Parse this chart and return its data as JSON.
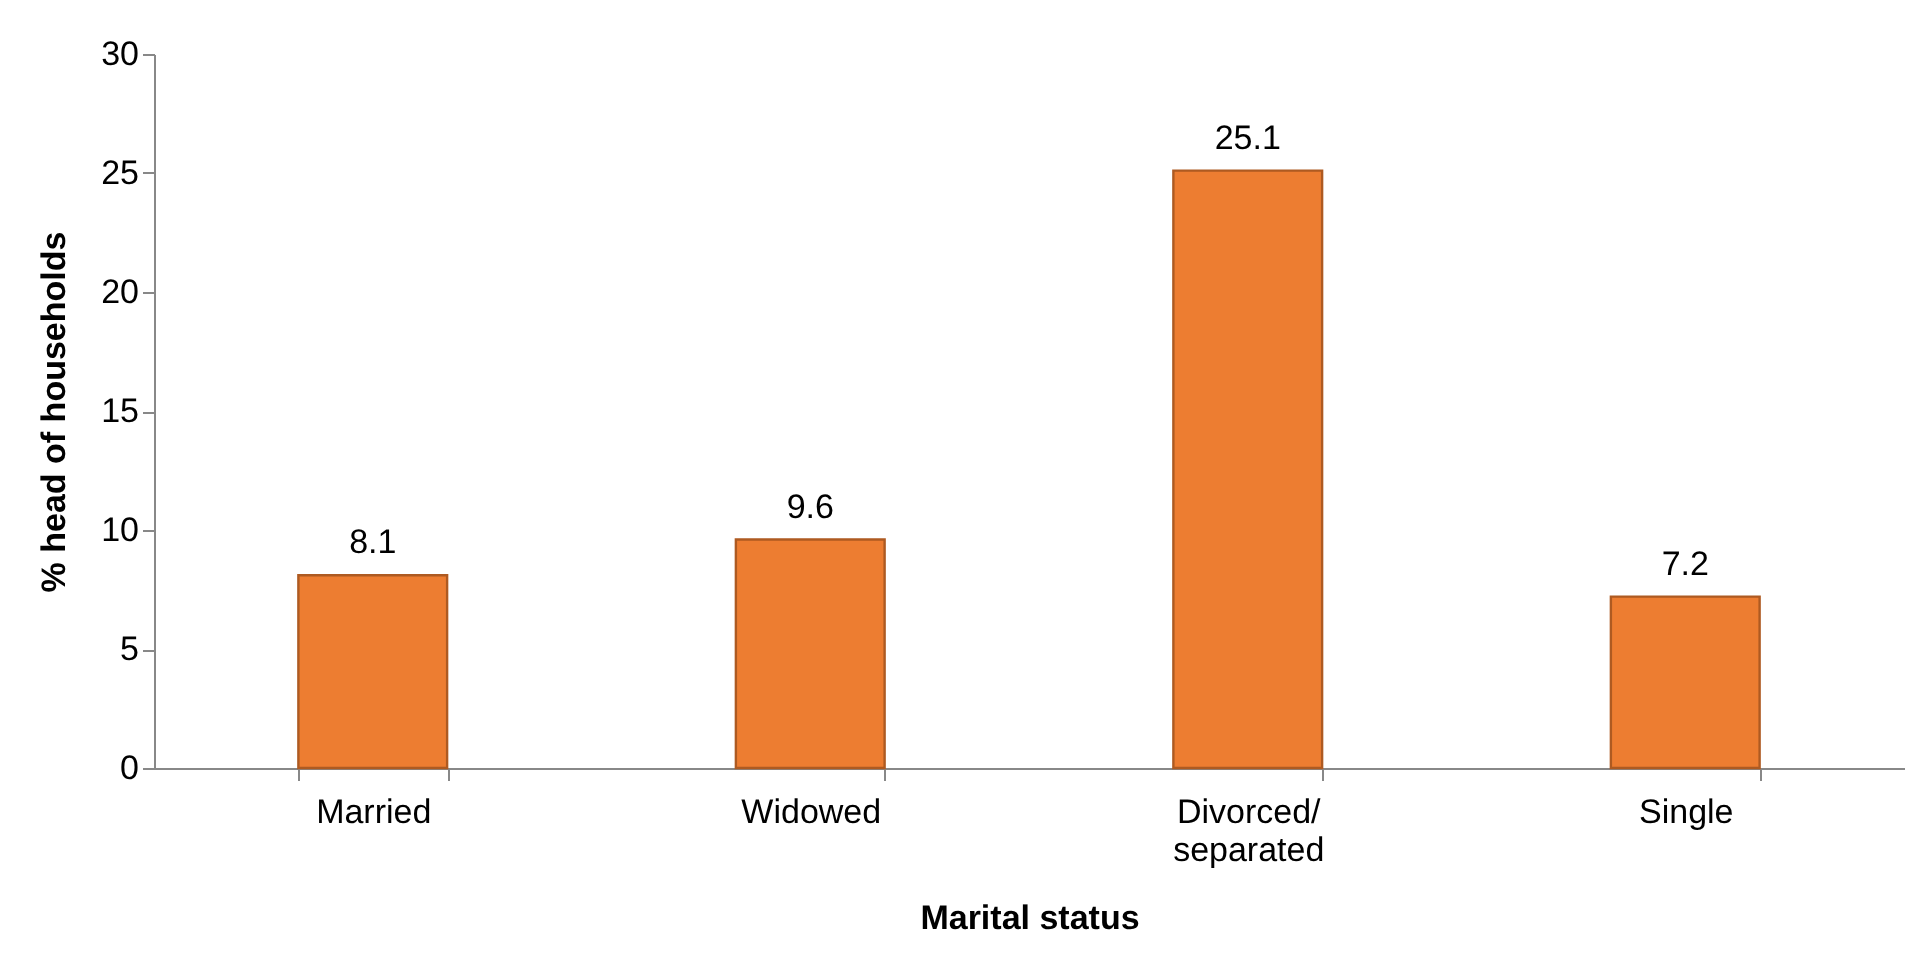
{
  "chart_data": {
    "type": "bar",
    "xlabel": "Marital status",
    "ylabel": "% head of households",
    "categories": [
      "Married",
      "Widowed",
      "Divorced/ separated",
      "Single"
    ],
    "values": [
      8.1,
      9.6,
      25.1,
      7.2
    ],
    "color": "#ed7d31",
    "ylim": [
      0,
      30
    ],
    "yticks": [
      0,
      5,
      10,
      15,
      20,
      25,
      30
    ],
    "grid": false,
    "data_labels": true
  }
}
